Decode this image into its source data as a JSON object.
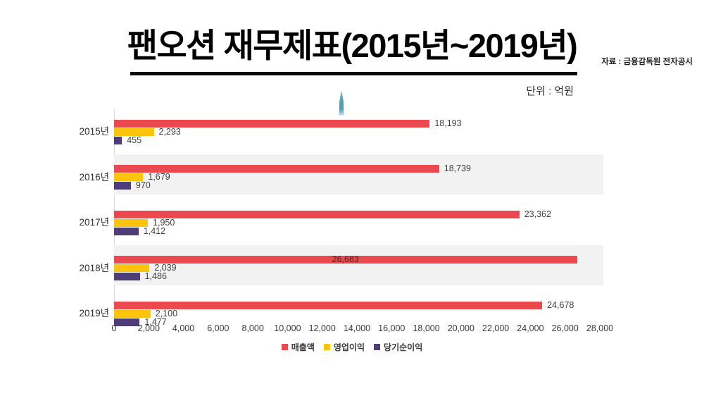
{
  "title": "팬오션 재무제표(2015년~2019년)",
  "source": "자료 : 금융감독원 전자공시",
  "unit": "단위 : 억원",
  "colors": {
    "revenue": "#ea4a4e",
    "operating_profit": "#fdc40e",
    "net_income": "#4e3d78",
    "row_band": "#f2f2f2",
    "axis_line": "#dcdcdc"
  },
  "chart_data": {
    "type": "bar",
    "orientation": "horizontal",
    "title": "팬오션 재무제표(2015년~2019년)",
    "unit": "억원",
    "categories": [
      "2015년",
      "2016년",
      "2017년",
      "2018년",
      "2019년"
    ],
    "series": [
      {
        "name": "매출액",
        "color": "#ea4a4e",
        "values": [
          18193,
          18739,
          23362,
          26683,
          24678
        ],
        "labels": [
          "18,193",
          "18,739",
          "23,362",
          "26,683",
          "24,678"
        ]
      },
      {
        "name": "영업이익",
        "color": "#fdc40e",
        "values": [
          2293,
          1679,
          1950,
          2039,
          2100
        ],
        "labels": [
          "2,293",
          "1,679",
          "1,950",
          "2,039",
          "2,100"
        ]
      },
      {
        "name": "당기순이익",
        "color": "#4e3d78",
        "values": [
          455,
          970,
          1412,
          1486,
          1477
        ],
        "labels": [
          "455",
          "970",
          "1,412",
          "1,486",
          "1,477"
        ]
      }
    ],
    "xlim": [
      0,
      28000
    ],
    "x_ticks": [
      "0",
      "2,000",
      "4,000",
      "6,000",
      "8,000",
      "10,000",
      "12,000",
      "14,000",
      "16,000",
      "18,000",
      "20,000",
      "22,000",
      "24,000",
      "26,000",
      "28,000"
    ],
    "banded_rows": [
      1,
      3
    ],
    "inside_labels": [
      [
        3,
        0
      ]
    ],
    "grid": false,
    "legend_position": "bottom"
  }
}
